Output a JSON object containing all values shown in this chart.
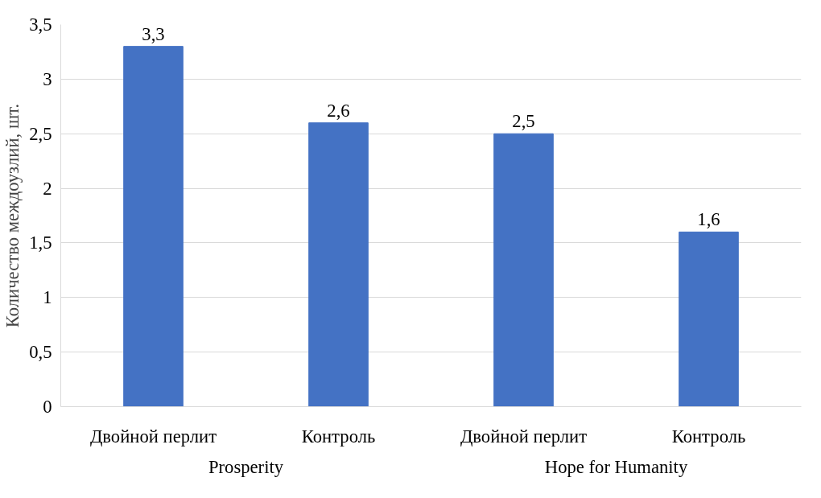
{
  "chart_data": {
    "type": "bar",
    "ylabel": "Количество междоузлий, шт.",
    "categories": [
      "Двойной перлит",
      "Контроль",
      "Двойной перлит",
      "Контроль"
    ],
    "values": [
      3.3,
      2.6,
      2.5,
      1.6
    ],
    "color": "#4472c4",
    "value_labels": [
      "3,3",
      "2,6",
      "2,5",
      "1,6"
    ],
    "annotations": [
      "Prosperity",
      "Hope for Humanity"
    ],
    "ylim": [
      0,
      3.5
    ],
    "yticks": [
      0,
      {
        "value": 0.5,
        "label": "0,5"
      },
      1,
      {
        "value": 1.5,
        "label": "1,5"
      },
      2,
      {
        "value": 2.5,
        "label": "2,5"
      },
      3,
      {
        "value": 3.5,
        "label": "3,5"
      }
    ],
    "grid": "y"
  }
}
